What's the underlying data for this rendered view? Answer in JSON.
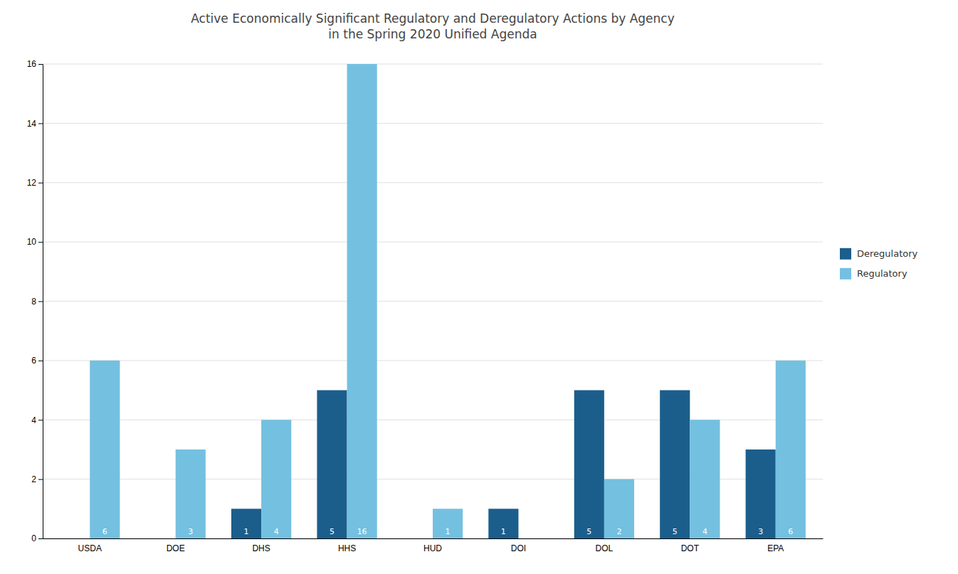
{
  "chart_data": {
    "type": "bar",
    "title": "Active Economically Significant Regulatory and Deregulatory Actions by Agency\nin the Spring 2020 Unified Agenda",
    "categories": [
      "USDA",
      "DOE",
      "DHS",
      "HHS",
      "HUD",
      "DOI",
      "DOL",
      "DOT",
      "EPA"
    ],
    "series": [
      {
        "name": "Deregulatory",
        "color": "#1b5e8c",
        "values": [
          0,
          0,
          1,
          5,
          0,
          1,
          5,
          5,
          3
        ]
      },
      {
        "name": "Regulatory",
        "color": "#74c0e0",
        "values": [
          6,
          3,
          4,
          16,
          1,
          0,
          2,
          4,
          6
        ]
      }
    ],
    "ylim": [
      0,
      16
    ],
    "yticks": [
      0,
      2,
      4,
      6,
      8,
      10,
      12,
      14,
      16
    ],
    "grid": true,
    "legend": "right",
    "data_labels": true
  }
}
